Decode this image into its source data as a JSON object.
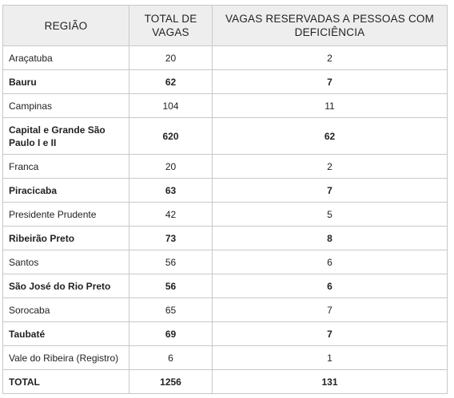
{
  "table": {
    "headers": [
      "REGIÃO",
      "TOTAL DE VAGAS",
      "VAGAS RESERVADAS A PESSOAS COM DEFICIÊNCIA"
    ],
    "rows": [
      {
        "regiao": "Araçatuba",
        "total": "20",
        "reservadas": "2",
        "bold": false
      },
      {
        "regiao": "Bauru",
        "total": "62",
        "reservadas": "7",
        "bold": true
      },
      {
        "regiao": "Campinas",
        "total": "104",
        "reservadas": "11",
        "bold": false
      },
      {
        "regiao": "Capital e Grande São Paulo I e II",
        "total": "620",
        "reservadas": "62",
        "bold": true
      },
      {
        "regiao": "Franca",
        "total": "20",
        "reservadas": "2",
        "bold": false
      },
      {
        "regiao": "Piracicaba",
        "total": "63",
        "reservadas": "7",
        "bold": true
      },
      {
        "regiao": "Presidente Prudente",
        "total": "42",
        "reservadas": "5",
        "bold": false
      },
      {
        "regiao": "Ribeirão Preto",
        "total": "73",
        "reservadas": "8",
        "bold": true
      },
      {
        "regiao": "Santos",
        "total": "56",
        "reservadas": "6",
        "bold": false
      },
      {
        "regiao": "São José do Rio Preto",
        "total": "56",
        "reservadas": "6",
        "bold": true
      },
      {
        "regiao": "Sorocaba",
        "total": "65",
        "reservadas": "7",
        "bold": false
      },
      {
        "regiao": "Taubaté",
        "total": "69",
        "reservadas": "7",
        "bold": true
      },
      {
        "regiao": "Vale do Ribeira (Registro)",
        "total": "6",
        "reservadas": "1",
        "bold": false
      },
      {
        "regiao": "TOTAL",
        "total": "1256",
        "reservadas": "131",
        "bold": true
      }
    ]
  }
}
